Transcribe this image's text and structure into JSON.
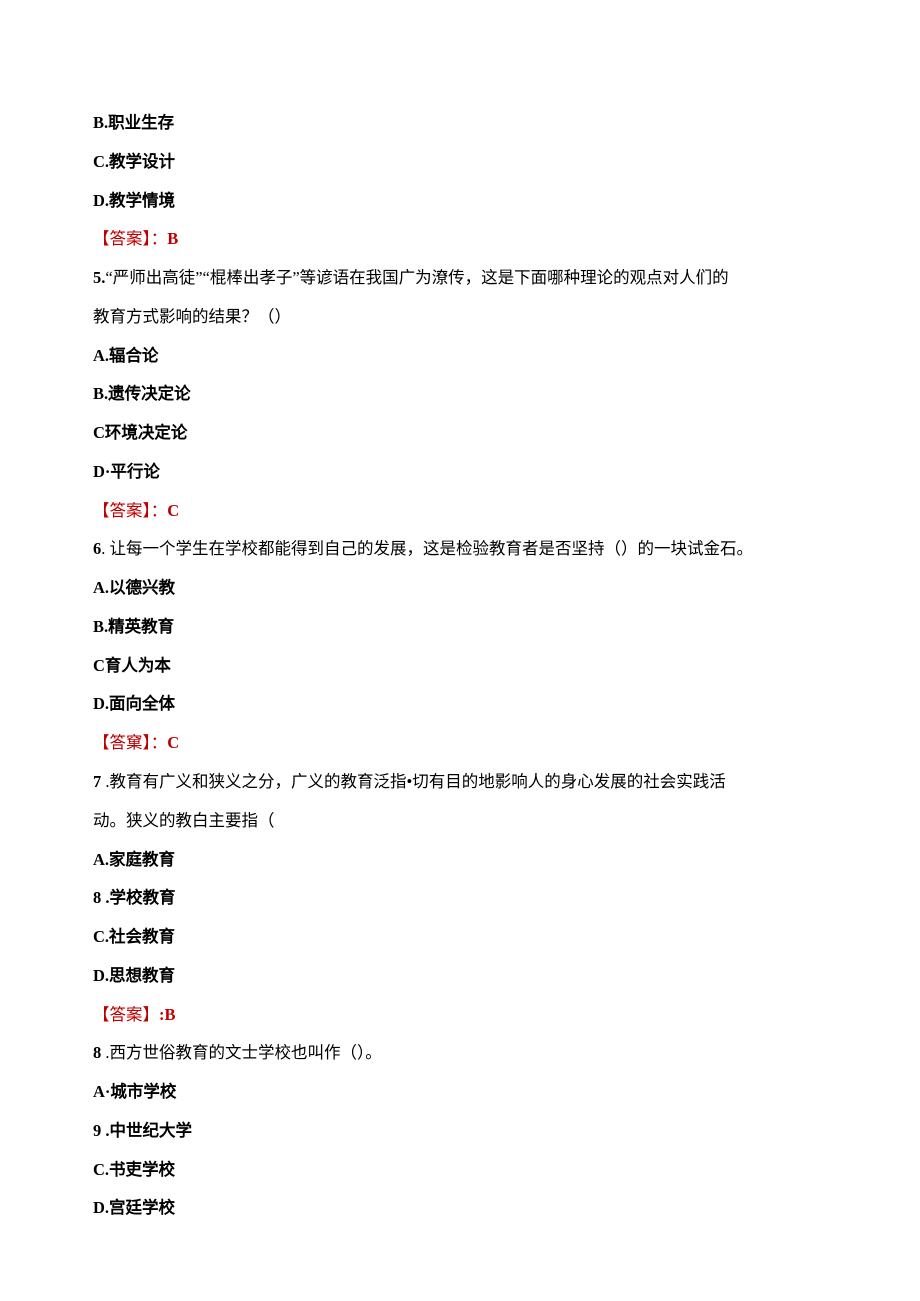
{
  "colors": {
    "text": "#000000",
    "answer": "#c00000",
    "background": "#ffffff"
  },
  "typography": {
    "font_family": "SimSun",
    "font_size_pt": 12,
    "line_height": 2.35
  },
  "q4": {
    "optB": "B.职业生存",
    "optC": "C.教学设计",
    "optD": "D.教学情境",
    "answer_label": "【答案】：",
    "answer_value": "B"
  },
  "q5": {
    "num": "5.",
    "stem_part1": "“严师出高徒”“棍棒出孝子”等谚语在我国广为潦传，这是下面哪种理论的观点对人们的",
    "stem_part2": "教育方式影响的结果？（）",
    "optA": "A.辐合论",
    "optB": "B.遗传决定论",
    "optC": "C环境决定论",
    "optD": "D·平行论",
    "answer_label": "【答案】：",
    "answer_value": "C"
  },
  "q6": {
    "num": "6",
    "stem": ". 让每一个学生在学校都能得到自己的发展，这是检验教育者是否坚持（）的一块试金石。",
    "optA": "A.以德兴教",
    "optB": "B.精英教育",
    "optC": "C育人为本",
    "optD": "D.面向全体",
    "answer_label": "【答窠】：",
    "answer_value": "C"
  },
  "q7": {
    "num": "7",
    "stem_part1": " .教育有广义和狭义之分，广义的教育泛指•切有目的地影响人的身心发展的社会实践活",
    "stem_part2": "动。狭义的教白主要指（",
    "optA": "A.家庭教育",
    "optB_num": "8",
    "optB_text": " .学校教育",
    "optC": "C.社会教育",
    "optD": "D.思想教育",
    "answer_label": "【答案】",
    "answer_value": ":B"
  },
  "q8": {
    "num": "8",
    "stem": " .西方世俗教育的文士学校也叫作（）。",
    "optA": "A·城市学校",
    "optB_num": "9",
    "optB_text": " .中世纪大学",
    "optC": "C.书吏学校",
    "optD": "D.宫廷学校"
  }
}
